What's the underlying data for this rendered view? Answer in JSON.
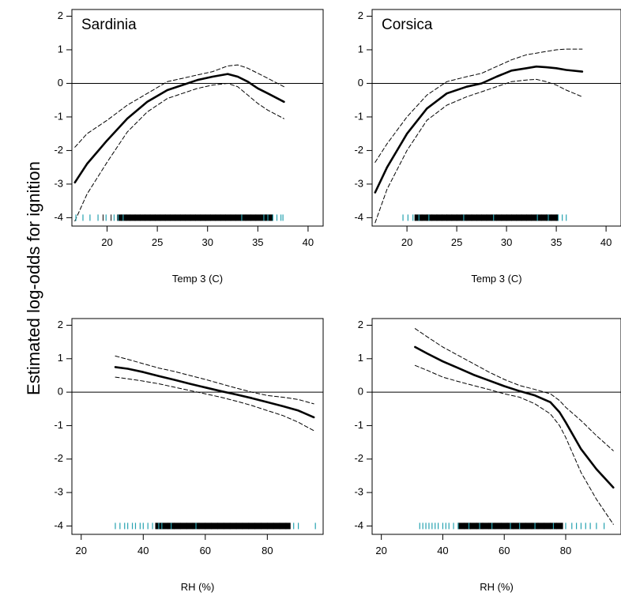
{
  "figure": {
    "ylabel": "Estimated log-odds for ignition"
  },
  "chart_data": [
    {
      "type": "line",
      "title": "Sardinia",
      "xlabel": "Temp 3 (C)",
      "ylabel": "",
      "xlim": [
        16.5,
        41.5
      ],
      "ylim": [
        -4.25,
        2.2
      ],
      "xticks": [
        20,
        25,
        30,
        35,
        40
      ],
      "yticks": [
        -4,
        -3,
        -2,
        -1,
        0,
        1,
        2
      ],
      "hline": 0,
      "series": [
        {
          "role": "estimate",
          "style": "solid",
          "x": [
            16.8,
            18,
            20,
            22,
            24,
            26,
            27.5,
            29,
            30.5,
            32,
            33,
            34,
            35,
            36,
            37.6
          ],
          "y": [
            -2.95,
            -2.4,
            -1.7,
            -1.05,
            -0.55,
            -0.2,
            -0.05,
            0.1,
            0.2,
            0.28,
            0.2,
            0.05,
            -0.15,
            -0.3,
            -0.55
          ]
        },
        {
          "role": "upper",
          "style": "dashed",
          "x": [
            16.8,
            18,
            20,
            22,
            24,
            26,
            27.5,
            29,
            30.5,
            32,
            33,
            34,
            35,
            36,
            37.6
          ],
          "y": [
            -1.9,
            -1.5,
            -1.1,
            -0.65,
            -0.3,
            0.05,
            0.15,
            0.25,
            0.35,
            0.52,
            0.55,
            0.45,
            0.3,
            0.15,
            -0.1
          ]
        },
        {
          "role": "lower",
          "style": "dashed",
          "x": [
            16.8,
            18,
            20,
            22,
            24,
            26,
            27.5,
            29,
            30.5,
            32,
            33,
            34,
            35,
            36,
            37.6
          ],
          "y": [
            -4.1,
            -3.3,
            -2.35,
            -1.45,
            -0.85,
            -0.45,
            -0.3,
            -0.15,
            -0.05,
            0.0,
            -0.1,
            -0.35,
            -0.6,
            -0.8,
            -1.05
          ]
        }
      ],
      "rug": {
        "y": -4,
        "x_black": [
          19.6,
          20.4,
          21.4,
          21.9,
          22.3,
          22.8,
          23.3,
          23.8,
          24.3,
          24.8,
          25.3,
          25.8,
          26.3,
          26.8,
          27.3,
          27.8,
          28.3,
          28.8,
          29.3,
          29.8,
          30.3,
          30.8,
          31.3,
          31.8,
          32.3,
          32.8,
          33.3,
          33.8,
          34.3,
          34.8,
          35.3,
          35.8,
          36.3
        ],
        "x_teal": [
          16.9,
          17.6,
          18.3,
          19.1,
          19.9,
          20.7,
          21.1,
          21.6,
          33.4,
          35.6,
          36.0,
          36.5,
          36.9,
          37.3,
          37.5
        ],
        "span": [
          21.0,
          36.5
        ]
      }
    },
    {
      "type": "line",
      "title": "Corsica",
      "xlabel": "Temp 3 (C)",
      "ylabel": "",
      "xlim": [
        16.5,
        41.5
      ],
      "ylim": [
        -4.25,
        2.2
      ],
      "xticks": [
        20,
        25,
        30,
        35,
        40
      ],
      "yticks": [
        -4,
        -3,
        -2,
        -1,
        0,
        1,
        2
      ],
      "hline": 0,
      "series": [
        {
          "role": "estimate",
          "style": "solid",
          "x": [
            16.8,
            18,
            20,
            22,
            24,
            26,
            27.5,
            29,
            30.5,
            32,
            33,
            34,
            35,
            36,
            37.6
          ],
          "y": [
            -3.25,
            -2.5,
            -1.5,
            -0.75,
            -0.3,
            -0.1,
            0.0,
            0.2,
            0.38,
            0.45,
            0.5,
            0.48,
            0.45,
            0.4,
            0.35
          ]
        },
        {
          "role": "upper",
          "style": "dashed",
          "x": [
            16.8,
            18,
            20,
            22,
            24,
            26,
            27.5,
            29,
            30.5,
            32,
            33,
            34,
            35,
            36,
            37.6
          ],
          "y": [
            -2.35,
            -1.8,
            -1.0,
            -0.35,
            0.05,
            0.2,
            0.3,
            0.5,
            0.7,
            0.85,
            0.9,
            0.95,
            1.0,
            1.02,
            1.02
          ]
        },
        {
          "role": "lower",
          "style": "dashed",
          "x": [
            16.8,
            18,
            20,
            22,
            24,
            26,
            27.5,
            29,
            30.5,
            32,
            33,
            34,
            35,
            36,
            37.6
          ],
          "y": [
            -4.15,
            -3.15,
            -2.0,
            -1.1,
            -0.65,
            -0.4,
            -0.25,
            -0.1,
            0.05,
            0.1,
            0.12,
            0.05,
            -0.05,
            -0.2,
            -0.4
          ]
        }
      ],
      "rug": {
        "y": -4,
        "x_black": [
          20.8,
          21.5,
          22.0,
          22.5,
          23.0,
          23.5,
          24.0,
          24.5,
          25.0,
          25.5,
          26.0,
          26.5,
          27.0,
          27.5,
          28.0,
          28.5,
          29.0,
          29.5,
          30.0,
          30.5,
          31.0,
          31.5,
          32.0,
          32.5,
          33.0,
          33.5,
          34.0,
          34.5,
          35.0
        ],
        "x_teal": [
          19.6,
          20.1,
          20.6,
          21.2,
          22.2,
          25.7,
          28.7,
          33.1,
          34.2,
          35.2,
          35.6,
          36.0
        ],
        "span": [
          20.8,
          35.2
        ]
      }
    },
    {
      "type": "line",
      "title": "",
      "xlabel": "RH (%)",
      "ylabel": "",
      "xlim": [
        17,
        98
      ],
      "ylim": [
        -4.25,
        2.2
      ],
      "xticks": [
        20,
        40,
        60,
        80
      ],
      "yticks": [
        -4,
        -3,
        -2,
        -1,
        0,
        1,
        2
      ],
      "hline": 0,
      "series": [
        {
          "role": "estimate",
          "style": "solid",
          "x": [
            31,
            35,
            40,
            45,
            50,
            55,
            60,
            65,
            70,
            75,
            80,
            85,
            90,
            95
          ],
          "y": [
            0.75,
            0.7,
            0.6,
            0.48,
            0.37,
            0.25,
            0.14,
            0.03,
            -0.07,
            -0.18,
            -0.3,
            -0.42,
            -0.55,
            -0.75
          ]
        },
        {
          "role": "upper",
          "style": "dashed",
          "x": [
            31,
            35,
            40,
            45,
            50,
            55,
            60,
            65,
            70,
            75,
            80,
            85,
            90,
            95
          ],
          "y": [
            1.08,
            0.98,
            0.85,
            0.72,
            0.62,
            0.5,
            0.38,
            0.25,
            0.12,
            0.0,
            -0.1,
            -0.15,
            -0.22,
            -0.35
          ]
        },
        {
          "role": "lower",
          "style": "dashed",
          "x": [
            31,
            35,
            40,
            45,
            50,
            55,
            60,
            65,
            70,
            75,
            80,
            85,
            90,
            95
          ],
          "y": [
            0.45,
            0.4,
            0.33,
            0.25,
            0.15,
            0.05,
            -0.05,
            -0.15,
            -0.27,
            -0.4,
            -0.55,
            -0.7,
            -0.9,
            -1.15
          ]
        }
      ],
      "rug": {
        "y": -4,
        "x_black": [
          44,
          46,
          48,
          50,
          52,
          54,
          56,
          58,
          60,
          62,
          64,
          66,
          68,
          70,
          72,
          74,
          76,
          78,
          80,
          82,
          84,
          86
        ],
        "x_teal": [
          31,
          32.5,
          34,
          35,
          36.5,
          37.5,
          39,
          40,
          41.5,
          43,
          45,
          46,
          49,
          57,
          88.5,
          90,
          95.5
        ],
        "span": [
          44.0,
          87.5
        ]
      }
    },
    {
      "type": "line",
      "title": "",
      "xlabel": "RH (%)",
      "ylabel": "",
      "xlim": [
        17,
        98
      ],
      "ylim": [
        -4.25,
        2.2
      ],
      "xticks": [
        20,
        40,
        60,
        80
      ],
      "yticks": [
        -4,
        -3,
        -2,
        -1,
        0,
        1,
        2
      ],
      "hline": 0,
      "series": [
        {
          "role": "estimate",
          "style": "solid",
          "x": [
            31,
            35,
            40,
            45,
            50,
            55,
            60,
            65,
            70,
            75,
            78,
            80,
            85,
            90,
            95.5
          ],
          "y": [
            1.35,
            1.15,
            0.92,
            0.72,
            0.52,
            0.35,
            0.18,
            0.03,
            -0.1,
            -0.3,
            -0.6,
            -0.9,
            -1.7,
            -2.3,
            -2.85
          ]
        },
        {
          "role": "upper",
          "style": "dashed",
          "x": [
            31,
            35,
            40,
            45,
            50,
            55,
            60,
            65,
            70,
            75,
            78,
            80,
            85,
            90,
            95.5
          ],
          "y": [
            1.9,
            1.65,
            1.35,
            1.1,
            0.85,
            0.6,
            0.38,
            0.2,
            0.08,
            -0.05,
            -0.25,
            -0.45,
            -0.85,
            -1.3,
            -1.75
          ]
        },
        {
          "role": "lower",
          "style": "dashed",
          "x": [
            31,
            35,
            40,
            45,
            50,
            55,
            60,
            65,
            70,
            75,
            78,
            80,
            85,
            90,
            95.5
          ],
          "y": [
            0.8,
            0.65,
            0.45,
            0.32,
            0.2,
            0.08,
            -0.05,
            -0.15,
            -0.35,
            -0.65,
            -1.0,
            -1.35,
            -2.4,
            -3.2,
            -3.95
          ]
        }
      ],
      "rug": {
        "y": -4,
        "x_black": [
          45,
          47,
          49,
          51,
          53,
          55,
          57,
          59,
          61,
          63,
          65,
          67,
          69,
          71,
          73,
          75,
          77,
          79
        ],
        "x_teal": [
          32.5,
          33.5,
          34.5,
          35.5,
          36.5,
          37.5,
          38.5,
          40,
          41,
          42,
          43.5,
          45,
          48.5,
          52,
          56,
          62,
          65,
          70,
          76,
          80,
          82,
          83.5,
          85,
          86.5,
          88,
          90,
          92.5
        ],
        "span": [
          45.0,
          79.0
        ]
      }
    }
  ]
}
